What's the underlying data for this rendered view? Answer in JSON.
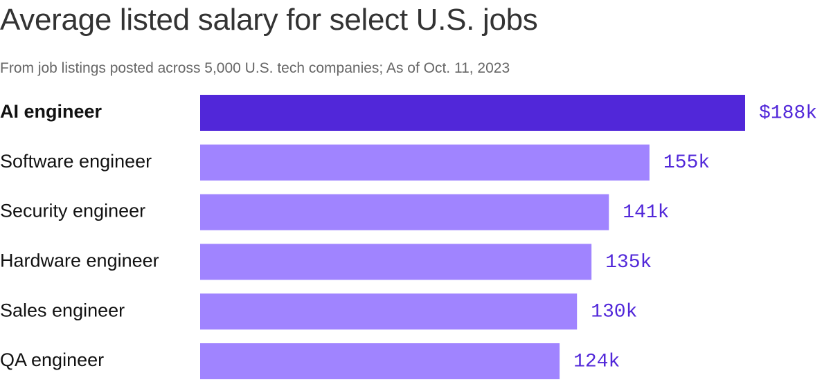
{
  "colors": {
    "highlight_bar": "#5127d9",
    "bar": "#a084ff",
    "value_text": "#5127d9"
  },
  "chart_data": {
    "type": "bar",
    "orientation": "horizontal",
    "title": "Average listed salary for select U.S. jobs",
    "subtitle": "From job listings posted across 5,000 U.S. tech companies; As of Oct. 11, 2023",
    "categories": [
      "AI engineer",
      "Software engineer",
      "Security engineer",
      "Hardware engineer",
      "Sales engineer",
      "QA engineer"
    ],
    "values": [
      188,
      155,
      141,
      135,
      130,
      124
    ],
    "value_labels": [
      "$188k",
      "155k",
      "141k",
      "135k",
      "130k",
      "124k"
    ],
    "unit": "thousand USD",
    "highlight_index": 0,
    "xlim": [
      0,
      188
    ],
    "grid": false,
    "legend": "none"
  }
}
